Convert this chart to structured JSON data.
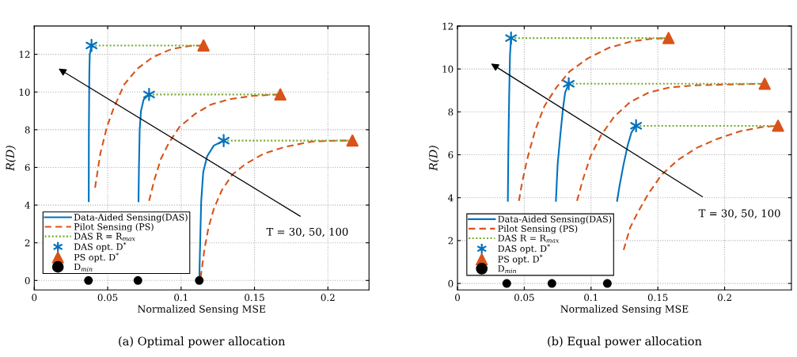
{
  "chart_data": [
    {
      "type": "line",
      "title": "(a) Optimal power allocation",
      "xlabel": "Normalized Sensing MSE",
      "ylabel": "R(D)",
      "xlim": [
        0,
        0.228
      ],
      "ylim": [
        -0.5,
        13.5
      ],
      "xticks": [
        0,
        0.05,
        0.1,
        0.15,
        0.2
      ],
      "yticks": [
        0,
        2,
        4,
        6,
        8,
        10,
        12
      ],
      "grid": true,
      "legend": "bottom left",
      "annotations": [
        "T = 30, 50, 100"
      ],
      "series": [
        {
          "name": "Data-Aided Sensing(DAS)",
          "color": "#0072bd",
          "line_style": "solid",
          "x": [
            0.0371,
            0.0372,
            0.0375,
            0.0378,
            0.039
          ],
          "values": [
            4.2,
            8,
            11,
            12,
            12.47
          ]
        },
        {
          "name": "Pilot Sensing (PS)",
          "color": "#d95319",
          "line_style": "dashed",
          "x": [
            0.0414,
            0.045,
            0.0495,
            0.054,
            0.0612,
            0.0701,
            0.0809,
            0.0935,
            0.1061,
            0.1153
          ],
          "values": [
            4.92,
            6.74,
            8.15,
            9.13,
            10.39,
            11.23,
            11.86,
            12.28,
            12.45,
            12.47
          ]
        },
        {
          "name": "DAS R = R$_{max}$",
          "color": "#77ac30",
          "line_style": "dotted",
          "x": [
            0.039,
            0.1153
          ],
          "values": [
            12.47,
            12.47
          ]
        },
        {
          "name": "DAS opt. D$^{*}$",
          "type": "scatter",
          "color": "#0072bd",
          "marker": "cross",
          "x": [
            0.039,
            0.0782,
            0.129
          ],
          "values": [
            12.47,
            9.87,
            7.42
          ]
        },
        {
          "name": "PS opt. D$^{*}$",
          "type": "scatter",
          "color": "#d95319",
          "marker": "triangle",
          "x": [
            0.1153,
            0.1676,
            0.2167
          ],
          "values": [
            12.47,
            9.87,
            7.42
          ]
        },
        {
          "name": "D$_{min}$",
          "type": "scatter",
          "color": "#000000",
          "marker": "circle",
          "x": [
            0.0369,
            0.0706,
            0.1124
          ],
          "values": [
            0,
            0,
            0
          ]
        },
        {
          "color": "#0072bd",
          "line_style": "solid",
          "x": [
            0.071,
            0.0713,
            0.0718,
            0.0727,
            0.0745,
            0.0782
          ],
          "values": [
            4.2,
            6,
            8,
            9,
            9.6,
            9.87
          ]
        },
        {
          "color": "#0072bd",
          "line_style": "solid",
          "x": [
            0.1124,
            0.1128,
            0.1137,
            0.1151,
            0.1178,
            0.1223,
            0.129
          ],
          "values": [
            0,
            1.4,
            4.2,
            5.76,
            6.6,
            7.16,
            7.42
          ]
        },
        {
          "color": "#d95319",
          "line_style": "dashed",
          "x": [
            0.0782,
            0.0818,
            0.0863,
            0.0917,
            0.0989,
            0.1097,
            0.1205,
            0.1331,
            0.1493,
            0.1676
          ],
          "values": [
            4.22,
            5.34,
            6.46,
            7.3,
            8.15,
            8.85,
            9.34,
            9.62,
            9.8,
            9.87
          ]
        },
        {
          "color": "#d95319",
          "line_style": "dashed",
          "x": [
            0.1133,
            0.116,
            0.1187,
            0.1223,
            0.1277,
            0.1349,
            0.1439,
            0.1565,
            0.1709,
            0.1888,
            0.2068,
            0.2167
          ],
          "values": [
            0.15,
            1.7,
            2.82,
            3.8,
            4.78,
            5.62,
            6.18,
            6.74,
            7.09,
            7.37,
            7.42,
            7.42
          ]
        },
        {
          "color": "#77ac30",
          "line_style": "dotted",
          "x": [
            0.0782,
            0.1676
          ],
          "values": [
            9.87,
            9.87
          ]
        },
        {
          "color": "#77ac30",
          "line_style": "dotted",
          "x": [
            0.129,
            0.2167
          ],
          "values": [
            7.42,
            7.42
          ]
        }
      ]
    },
    {
      "type": "line",
      "title": "(b) Equal power allocation",
      "xlabel": "Normalized Sensing MSE",
      "ylabel": "R(D)",
      "xlim": [
        0,
        0.25
      ],
      "ylim": [
        -0.3,
        12
      ],
      "xticks": [
        0,
        0.05,
        0.1,
        0.15,
        0.2
      ],
      "yticks": [
        0,
        2,
        4,
        6,
        8,
        10,
        12
      ],
      "grid": true,
      "legend": "bottom left",
      "annotations": [
        "T = 30, 50, 100"
      ],
      "series": [
        {
          "name": "Data-Aided Sensing(DAS)",
          "color": "#0072bd",
          "line_style": "solid",
          "x": [
            0.0377,
            0.0381,
            0.0387,
            0.0393,
            0.0401
          ],
          "values": [
            3.85,
            6.31,
            8.77,
            10.62,
            11.44
          ]
        },
        {
          "name": "Pilot Sensing (PS)",
          "color": "#d95319",
          "line_style": "dashed",
          "x": [
            0.046,
            0.0484,
            0.0523,
            0.0583,
            0.0652,
            0.0741,
            0.0839,
            0.0977,
            0.1135,
            0.1293,
            0.1451,
            0.158
          ],
          "values": [
            3.85,
            4.71,
            5.82,
            7.17,
            8.28,
            9.14,
            9.88,
            10.5,
            10.99,
            11.27,
            11.41,
            11.44
          ]
        },
        {
          "name": "DAS R = R$_{max}$",
          "color": "#77ac30",
          "line_style": "dotted",
          "x": [
            0.0401,
            0.158
          ],
          "values": [
            11.44,
            11.44
          ]
        },
        {
          "name": "DAS opt. D$^{*}$",
          "type": "scatter",
          "color": "#0072bd",
          "marker": "cross",
          "x": [
            0.0401,
            0.0833,
            0.1337
          ],
          "values": [
            11.44,
            9.31,
            7.35
          ]
        },
        {
          "name": "PS opt. D$^{*}$",
          "type": "scatter",
          "color": "#d95319",
          "marker": "triangle",
          "x": [
            0.158,
            0.23,
            0.24
          ],
          "values": [
            11.44,
            9.31,
            7.35
          ]
        },
        {
          "name": "D$_{min}$",
          "type": "scatter",
          "color": "#000000",
          "marker": "circle",
          "x": [
            0.0369,
            0.0707,
            0.1122
          ],
          "values": [
            0,
            0,
            0
          ]
        },
        {
          "color": "#0072bd",
          "line_style": "solid",
          "x": [
            0.0737,
            0.075,
            0.077,
            0.079,
            0.0806,
            0.0833
          ],
          "values": [
            3.85,
            5.57,
            6.92,
            8.16,
            8.9,
            9.31
          ]
        },
        {
          "color": "#0072bd",
          "line_style": "solid",
          "x": [
            0.1195,
            0.1214,
            0.1244,
            0.1274,
            0.1303,
            0.1337
          ],
          "values": [
            3.85,
            4.58,
            5.57,
            6.43,
            7.05,
            7.35
          ]
        },
        {
          "color": "#d95319",
          "line_style": "dashed",
          "x": [
            0.0895,
            0.0938,
            0.0997,
            0.1076,
            0.1175,
            0.1293,
            0.1432,
            0.159,
            0.1787,
            0.1985,
            0.23
          ],
          "values": [
            3.85,
            4.83,
            5.94,
            6.92,
            7.79,
            8.46,
            8.9,
            9.14,
            9.24,
            9.27,
            9.31
          ]
        },
        {
          "color": "#d95319",
          "line_style": "dashed",
          "x": [
            0.1244,
            0.1293,
            0.1353,
            0.1432,
            0.153,
            0.1649,
            0.1787,
            0.1945,
            0.2123,
            0.2281,
            0.24
          ],
          "values": [
            1.56,
            2.61,
            3.35,
            4.21,
            5.08,
            5.75,
            6.31,
            6.74,
            7.11,
            7.29,
            7.35
          ]
        },
        {
          "color": "#77ac30",
          "line_style": "dotted",
          "x": [
            0.0833,
            0.23
          ],
          "values": [
            9.31,
            9.31
          ]
        },
        {
          "color": "#77ac30",
          "line_style": "dotted",
          "x": [
            0.1337,
            0.24
          ],
          "values": [
            7.35,
            7.35
          ]
        }
      ]
    }
  ]
}
